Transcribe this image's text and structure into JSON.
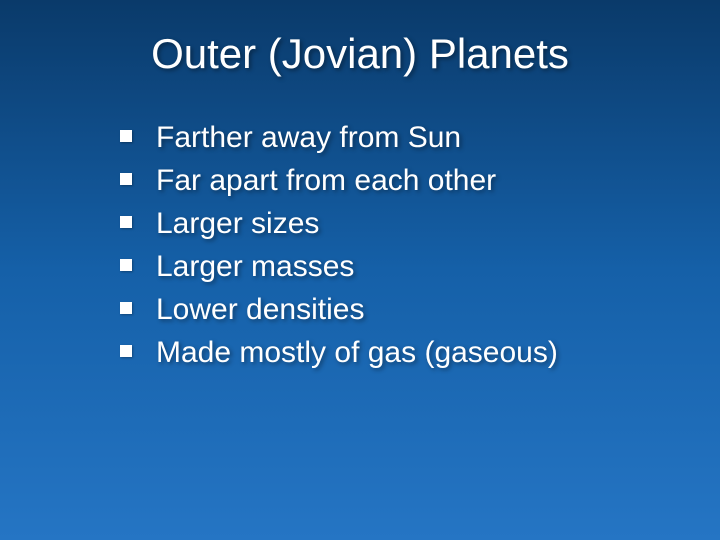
{
  "slide": {
    "title": "Outer (Jovian) Planets",
    "bullets": [
      "Farther away from Sun",
      "Far apart from each other",
      "Larger sizes",
      "Larger masses",
      "Lower densities",
      "Made mostly of gas (gaseous)"
    ]
  },
  "style": {
    "background_gradient_top": "#0a3a6a",
    "background_gradient_mid": "#1560a8",
    "background_gradient_bottom": "#2575c4",
    "text_color": "#ffffff",
    "bullet_color": "#ffffff",
    "title_fontsize": 42,
    "bullet_fontsize": 30,
    "title_font": "Arial",
    "body_font": "Verdana"
  }
}
